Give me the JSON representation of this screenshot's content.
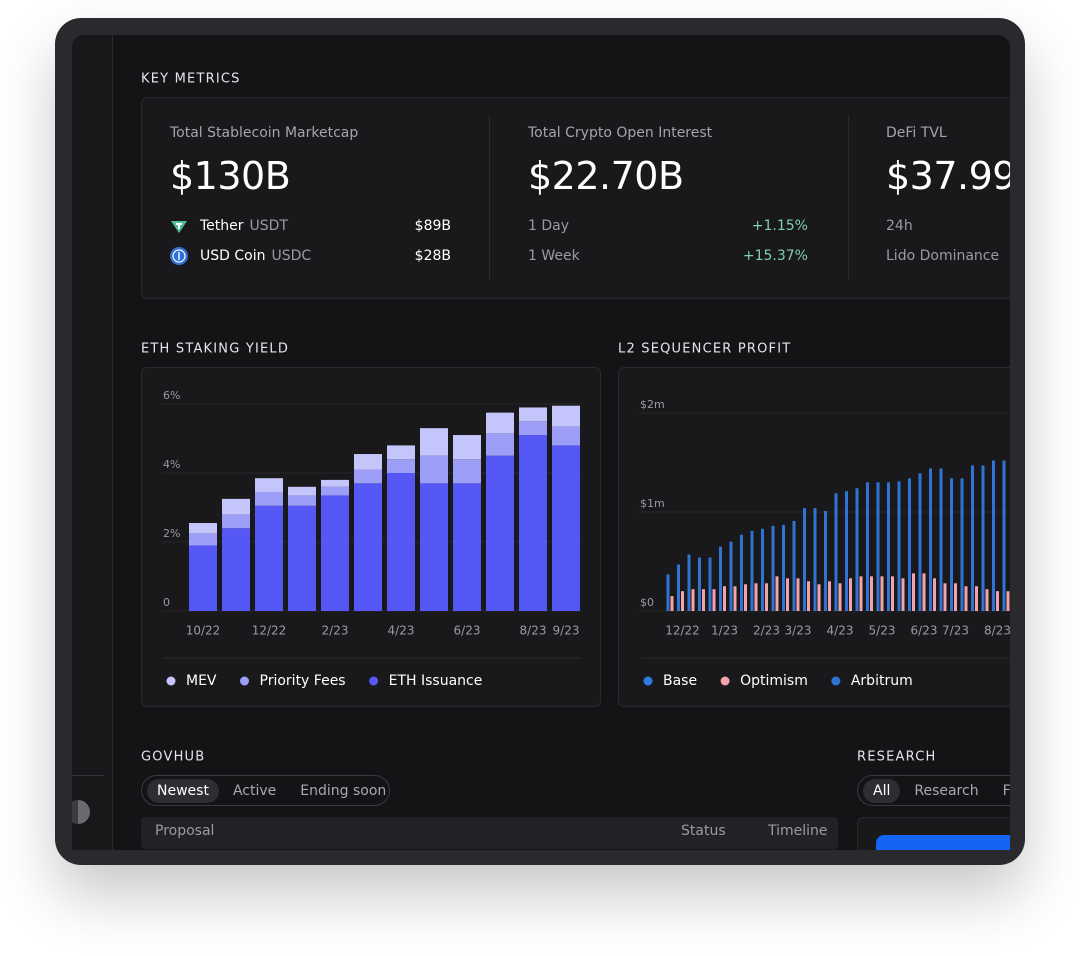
{
  "key_metrics": {
    "title": "KEY METRICS",
    "cards": [
      {
        "label": "Total Stablecoin Marketcap",
        "value": "$130B",
        "rows": [
          {
            "name": "Tether",
            "ticker": "USDT",
            "amount": "$89B"
          },
          {
            "name": "USD Coin",
            "ticker": "USDC",
            "amount": "$28B"
          }
        ]
      },
      {
        "label": "Total Crypto Open Interest",
        "value": "$22.70B",
        "rows": [
          {
            "name": "1 Day",
            "change": "+1.15%"
          },
          {
            "name": "1 Week",
            "change": "+15.37%"
          }
        ]
      },
      {
        "label": "DeFi TVL",
        "value": "$37.99",
        "rows": [
          {
            "name": "24h"
          },
          {
            "name": "Lido Dominance"
          }
        ]
      }
    ]
  },
  "chart_data": [
    {
      "type": "bar",
      "stacked": true,
      "title": "ETH STAKING YIELD",
      "grid": true,
      "categories": [
        "10/22",
        null,
        "12/22",
        null,
        "2/23",
        null,
        "4/23",
        null,
        "6/23",
        null,
        "8/23",
        "9/23"
      ],
      "series": [
        {
          "name": "MEV",
          "color": "#c4c5fb",
          "values": [
            0.3,
            0.45,
            0.4,
            0.25,
            0.2,
            0.45,
            0.4,
            0.8,
            0.7,
            0.6,
            0.4,
            0.6
          ]
        },
        {
          "name": "Priority Fees",
          "color": "#9c9ef8",
          "values": [
            0.35,
            0.4,
            0.4,
            0.3,
            0.25,
            0.4,
            0.4,
            0.8,
            0.7,
            0.65,
            0.4,
            0.55
          ]
        },
        {
          "name": "ETH Issuance",
          "color": "#5558f4",
          "values": [
            1.9,
            2.4,
            3.05,
            3.05,
            3.35,
            3.7,
            4.0,
            3.7,
            3.7,
            4.5,
            5.1,
            4.8
          ]
        }
      ],
      "ylim": [
        0,
        6
      ],
      "yticks": [
        0,
        {
          "value": 2,
          "label": "2%"
        },
        {
          "value": 4,
          "label": "4%"
        },
        {
          "value": 6,
          "label": "6%"
        }
      ]
    },
    {
      "type": "bar",
      "stacked": false,
      "title": "L2 SEQUENCER PROFIT",
      "grid": true,
      "categories": [
        null,
        "12/22",
        null,
        null,
        null,
        "1/23",
        null,
        null,
        null,
        "2/23",
        null,
        null,
        "3/23",
        null,
        null,
        null,
        "4/23",
        null,
        null,
        null,
        "5/23",
        null,
        null,
        null,
        "6/23",
        null,
        null,
        "7/23",
        null,
        null,
        null,
        "8/23",
        null
      ],
      "series": [
        {
          "name": "Base",
          "color": "#2e7ce0",
          "values": [
            null,
            null,
            null,
            null,
            null,
            null,
            null,
            null,
            null,
            null,
            null,
            null,
            null,
            null,
            null,
            null,
            null,
            null,
            null,
            null,
            null,
            null,
            null,
            null,
            null,
            null,
            null,
            null,
            null,
            null,
            null,
            null,
            null
          ]
        },
        {
          "name": "Optimism",
          "color": "#f2a4aa",
          "values": [
            0.15,
            0.2,
            0.22,
            0.22,
            0.22,
            0.25,
            0.25,
            0.27,
            0.28,
            0.28,
            0.35,
            0.33,
            0.33,
            0.3,
            0.27,
            0.3,
            0.28,
            0.33,
            0.35,
            0.35,
            0.35,
            0.35,
            0.33,
            0.38,
            0.38,
            0.33,
            0.28,
            0.28,
            0.25,
            0.25,
            0.22,
            0.2,
            0.2
          ]
        },
        {
          "name": "Arbitrum",
          "color": "#2f74d2",
          "values": [
            0.37,
            0.47,
            0.57,
            0.54,
            0.54,
            0.65,
            0.7,
            0.77,
            0.81,
            0.83,
            0.86,
            0.87,
            0.91,
            1.04,
            1.04,
            1.01,
            1.19,
            1.21,
            1.24,
            1.3,
            1.3,
            1.3,
            1.31,
            1.34,
            1.39,
            1.44,
            1.44,
            1.34,
            1.34,
            1.47,
            1.47,
            1.52,
            1.52
          ]
        }
      ],
      "ylim": [
        0,
        2
      ],
      "yticks": [
        {
          "value": 0,
          "label": "$0"
        },
        {
          "value": 1,
          "label": "$1m"
        },
        {
          "value": 2,
          "label": "$2m"
        }
      ]
    }
  ],
  "govhub": {
    "title": "GOVHUB",
    "tabs": [
      "Newest",
      "Active",
      "Ending soon"
    ],
    "columns": [
      "Proposal",
      "Status",
      "Timeline"
    ]
  },
  "research": {
    "title": "RESEARCH",
    "tabs": [
      "All",
      "Research",
      "F"
    ]
  }
}
